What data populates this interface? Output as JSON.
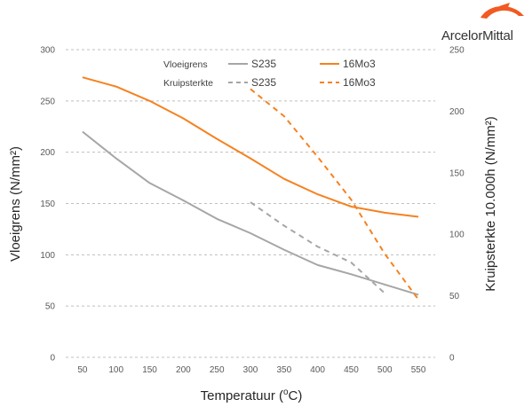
{
  "brand": {
    "name": "ArcelorMittal",
    "color": "#f15a22"
  },
  "chart_data": {
    "type": "line",
    "title": "",
    "xlabel": "Temperatuur (°C)",
    "ylabel_left": "Vloeigrens (N/mm²)",
    "ylabel_right": "Kruipsterkte 10.000h (N/mm²)",
    "x": [
      50,
      100,
      150,
      200,
      250,
      300,
      350,
      400,
      450,
      500,
      550
    ],
    "ylim_left": [
      0,
      300
    ],
    "ylim_right": [
      0,
      250
    ],
    "yticks_left": [
      0,
      50,
      100,
      150,
      200,
      250,
      300
    ],
    "yticks_right": [
      0,
      50,
      100,
      150,
      200,
      250
    ],
    "grid": true,
    "legend_placement": "top",
    "legend_groups": [
      "Vloeigrens",
      "Kruipsterkte"
    ],
    "series": [
      {
        "name": "S235",
        "group": "Vloeigrens",
        "axis": "left",
        "style": "solid",
        "color": "#a6a6a6",
        "x": [
          50,
          100,
          150,
          200,
          250,
          300,
          350,
          400,
          450,
          500,
          550
        ],
        "values": [
          220,
          194,
          170,
          153,
          135,
          121,
          105,
          90,
          81,
          71,
          61
        ]
      },
      {
        "name": "16Mo3",
        "group": "Vloeigrens",
        "axis": "left",
        "style": "solid",
        "color": "#f58220",
        "x": [
          50,
          100,
          150,
          200,
          250,
          300,
          350,
          400,
          450,
          500,
          550
        ],
        "values": [
          273,
          264,
          250,
          233,
          213,
          194,
          174,
          159,
          147,
          141,
          137
        ]
      },
      {
        "name": "S235",
        "group": "Kruipsterkte",
        "axis": "right",
        "style": "dashed",
        "color": "#a6a6a6",
        "x": [
          300,
          350,
          400,
          450,
          500
        ],
        "values": [
          126,
          107,
          90,
          77,
          52
        ]
      },
      {
        "name": "16Mo3",
        "group": "Kruipsterkte",
        "axis": "right",
        "style": "dashed",
        "color": "#f58220",
        "x": [
          300,
          350,
          400,
          450,
          500,
          550
        ],
        "values": [
          218,
          196,
          163,
          128,
          84,
          47
        ]
      }
    ]
  }
}
